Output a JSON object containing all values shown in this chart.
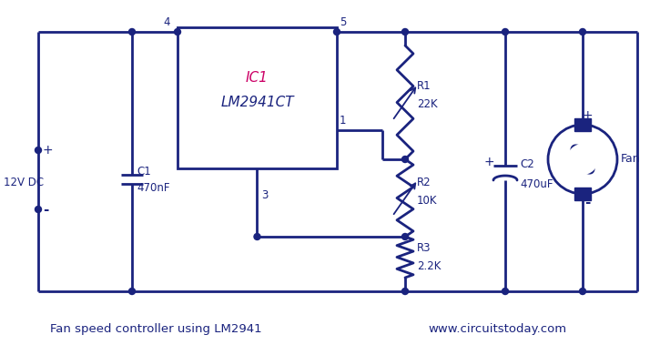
{
  "bg_color": "#ffffff",
  "line_color": "#1a237e",
  "text_color": "#1a237e",
  "title": "Fan speed controller using LM2941",
  "website": "www.circuitstoday.com",
  "ic_label1": "IC1",
  "ic_label2": "LM2941CT",
  "figsize": [
    7.25,
    3.79
  ],
  "dpi": 100
}
